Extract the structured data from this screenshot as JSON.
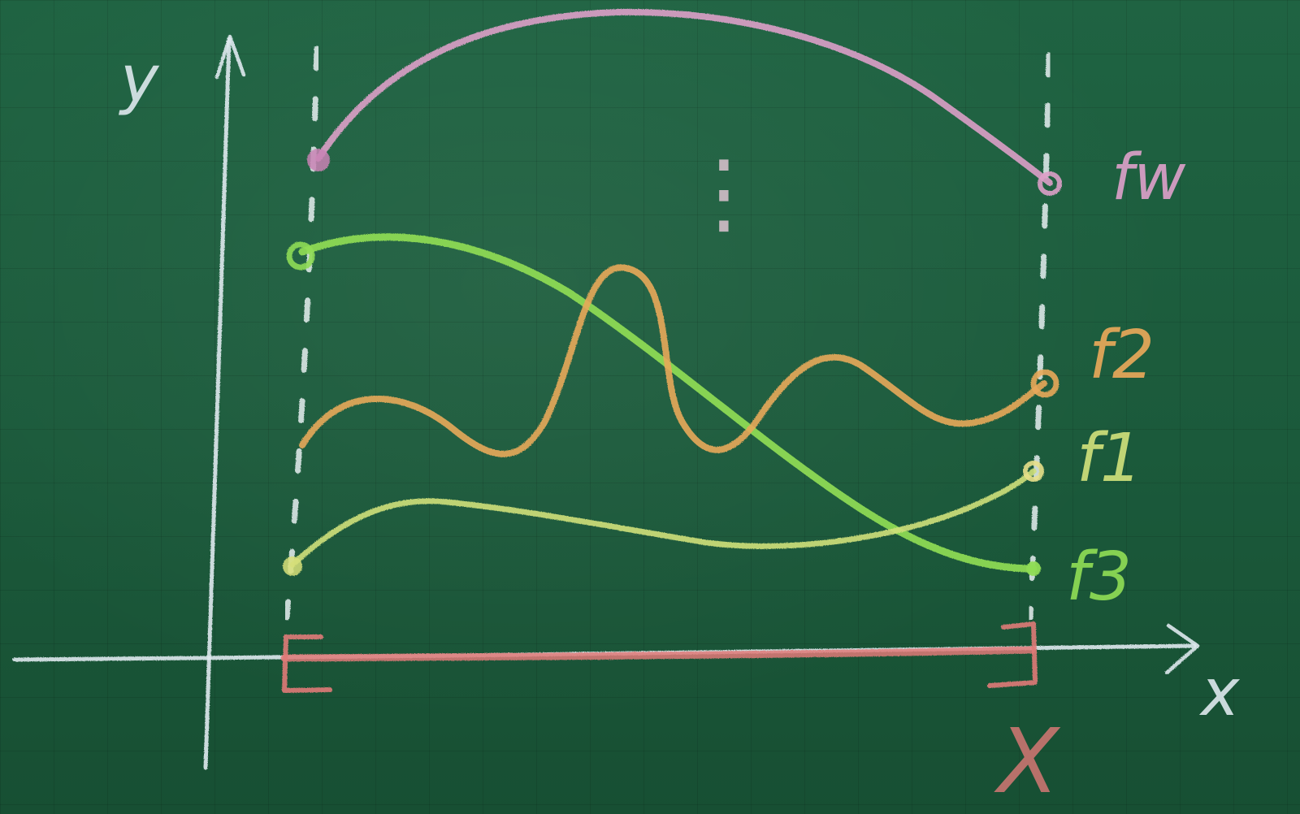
{
  "axes": {
    "x_label": "x",
    "y_label": "y"
  },
  "interval": {
    "label": "X",
    "color": "#e07a78"
  },
  "ellipsis": "⋮",
  "functions": [
    {
      "label": "fw",
      "color": "#dba0c8"
    },
    {
      "label": "f2",
      "color": "#e8a85a"
    },
    {
      "label": "f1",
      "color": "#cfe07a"
    },
    {
      "label": "f3",
      "color": "#8fdc55"
    }
  ],
  "colors": {
    "board": "#1c5a3b",
    "axis_chalk": "#dfe9ee",
    "dashed_chalk": "#e6eef0"
  }
}
